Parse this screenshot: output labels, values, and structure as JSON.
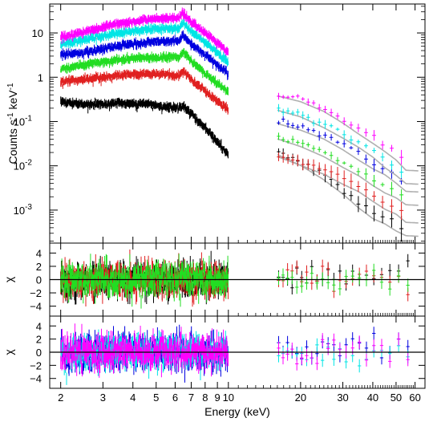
{
  "chart_data": [
    {
      "panel": "spectrum",
      "type": "scatter",
      "xscale": "log",
      "yscale": "log",
      "xlim": [
        1.8,
        66
      ],
      "ylim": [
        0.00018,
        45
      ],
      "ylabel_main": "Counts s",
      "ylabel_sup": "-1",
      "ylabel_mid": " keV",
      "ylabel_sup2": "-1",
      "ytick_labels": [
        {
          "value": 10,
          "base": "10",
          "exp": ""
        },
        {
          "value": 1,
          "base": "1",
          "exp": ""
        },
        {
          "value": 0.1,
          "base": "10",
          "exp": "-1"
        },
        {
          "value": 0.01,
          "base": "10",
          "exp": "-2"
        },
        {
          "value": 0.001,
          "base": "10",
          "exp": "-3"
        }
      ],
      "series": [
        {
          "color": "#ff00ff",
          "lowband": [
            [
              2.0,
              8.0
            ],
            [
              2.5,
              10.5
            ],
            [
              3.5,
              16
            ],
            [
              4.5,
              20
            ],
            [
              5.5,
              21
            ],
            [
              6.2,
              22
            ],
            [
              6.5,
              28
            ],
            [
              7,
              17
            ],
            [
              8,
              10
            ],
            [
              10,
              3.6
            ]
          ],
          "highband": [
            [
              16,
              0.42
            ],
            [
              20,
              0.33
            ],
            [
              25,
              0.21
            ],
            [
              30,
              0.12
            ],
            [
              35,
              0.07
            ],
            [
              40,
              0.045
            ],
            [
              45,
              0.03
            ],
            [
              50,
              0.02
            ],
            [
              55,
              0.012
            ]
          ]
        },
        {
          "color": "#00e5e5",
          "lowband": [
            [
              2.0,
              5.5
            ],
            [
              2.5,
              7.0
            ],
            [
              3.5,
              10
            ],
            [
              4.5,
              12
            ],
            [
              5.5,
              12.5
            ],
            [
              6.2,
              13
            ],
            [
              6.5,
              17
            ],
            [
              7,
              11
            ],
            [
              8,
              6
            ],
            [
              10,
              2.2
            ]
          ],
          "highband": [
            [
              16,
              0.2
            ],
            [
              20,
              0.15
            ],
            [
              25,
              0.09
            ],
            [
              30,
              0.055
            ],
            [
              35,
              0.035
            ],
            [
              40,
              0.022
            ],
            [
              45,
              0.013
            ],
            [
              50,
              0.009
            ],
            [
              55,
              0.006
            ]
          ]
        },
        {
          "color": "#0000e0",
          "lowband": [
            [
              2.0,
              3.2
            ],
            [
              2.5,
              3.6
            ],
            [
              3.5,
              5.2
            ],
            [
              4.5,
              6.2
            ],
            [
              5.5,
              6.5
            ],
            [
              6.2,
              6.8
            ],
            [
              6.5,
              9
            ],
            [
              7,
              5.5
            ],
            [
              8,
              3.2
            ],
            [
              10,
              1.2
            ]
          ],
          "highband": [
            [
              16,
              0.1
            ],
            [
              20,
              0.075
            ],
            [
              25,
              0.05
            ],
            [
              30,
              0.03
            ],
            [
              35,
              0.018
            ],
            [
              40,
              0.012
            ],
            [
              45,
              0.009
            ],
            [
              50,
              0.006
            ],
            [
              55,
              0.004
            ]
          ]
        },
        {
          "color": "#22dd22",
          "lowband": [
            [
              2.0,
              1.5
            ],
            [
              2.5,
              1.9
            ],
            [
              3.5,
              2.5
            ],
            [
              4.5,
              2.8
            ],
            [
              5.5,
              2.8
            ],
            [
              6.2,
              2.9
            ],
            [
              6.5,
              3.8
            ],
            [
              7,
              2.3
            ],
            [
              8,
              1.2
            ],
            [
              10,
              0.45
            ]
          ],
          "highband": [
            [
              16,
              0.045
            ],
            [
              20,
              0.032
            ],
            [
              25,
              0.02
            ],
            [
              30,
              0.012
            ],
            [
              35,
              0.008
            ],
            [
              40,
              0.005
            ],
            [
              45,
              0.0035
            ],
            [
              50,
              0.0028
            ],
            [
              55,
              0.002
            ]
          ]
        },
        {
          "color": "#e02020",
          "lowband": [
            [
              2.0,
              0.8
            ],
            [
              2.5,
              0.9
            ],
            [
              3.5,
              1.1
            ],
            [
              4.5,
              1.2
            ],
            [
              5.5,
              1.15
            ],
            [
              6.2,
              1.1
            ],
            [
              6.5,
              1.4
            ],
            [
              7,
              0.9
            ],
            [
              8,
              0.5
            ],
            [
              10,
              0.18
            ]
          ],
          "highband": [
            [
              16,
              0.018
            ],
            [
              20,
              0.012
            ],
            [
              25,
              0.008
            ],
            [
              30,
              0.005
            ],
            [
              35,
              0.0035
            ],
            [
              40,
              0.0022
            ],
            [
              45,
              0.0015
            ],
            [
              50,
              0.0012
            ],
            [
              55,
              0.0008
            ]
          ]
        },
        {
          "color": "#000000",
          "lowband": [
            [
              2.0,
              0.28
            ],
            [
              2.5,
              0.24
            ],
            [
              3.5,
              0.26
            ],
            [
              4.5,
              0.25
            ],
            [
              5.5,
              0.22
            ],
            [
              6.2,
              0.2
            ],
            [
              6.5,
              0.22
            ],
            [
              7,
              0.15
            ],
            [
              8,
              0.07
            ],
            [
              10,
              0.018
            ]
          ],
          "highband": [
            [
              16,
              0.02
            ],
            [
              20,
              0.012
            ],
            [
              25,
              0.006
            ],
            [
              30,
              0.003
            ],
            [
              35,
              0.0015
            ],
            [
              40,
              0.0009
            ],
            [
              45,
              0.0007
            ],
            [
              50,
              0.0005
            ],
            [
              55,
              0.0004
            ]
          ]
        }
      ]
    },
    {
      "panel": "residuals-1",
      "type": "scatter",
      "ylabel": "χ",
      "ylim": [
        -5.5,
        5.5
      ],
      "ytick_labels": [
        "4",
        "2",
        "0",
        "−2",
        "−4"
      ],
      "ytick_values": [
        4,
        2,
        0,
        -2,
        -4
      ],
      "series_colors": [
        "#000000",
        "#e02020",
        "#22dd22"
      ]
    },
    {
      "panel": "residuals-2",
      "type": "scatter",
      "ylabel": "χ",
      "ylim": [
        -5.5,
        5.5
      ],
      "ytick_labels": [
        "4",
        "2",
        "0",
        "−2",
        "−4"
      ],
      "ytick_values": [
        4,
        2,
        0,
        -2,
        -4
      ],
      "series_colors": [
        "#0000e0",
        "#00e5e5",
        "#ff00ff"
      ]
    }
  ],
  "xaxis": {
    "label": "Energy (keV)",
    "tick_values": [
      2,
      3,
      4,
      5,
      6,
      7,
      8,
      9,
      10,
      20,
      30,
      40,
      50,
      60
    ],
    "tick_labels": [
      "2",
      "3",
      "4",
      "5",
      "6",
      "7",
      "8",
      "9",
      "10",
      "20",
      "30",
      "40",
      "50",
      "60"
    ]
  }
}
